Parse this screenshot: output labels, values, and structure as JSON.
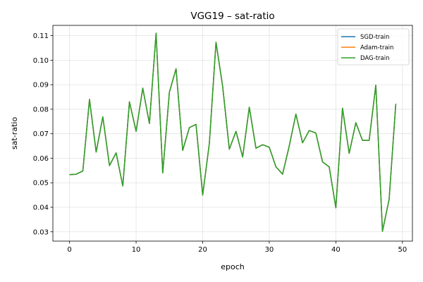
{
  "chart_data": {
    "type": "line",
    "title": "VGG19 – sat-ratio",
    "xlabel": "epoch",
    "ylabel": "sat-ratio",
    "xlim": [
      -2.5,
      51.5
    ],
    "ylim": [
      0.0262,
      0.1142
    ],
    "xticks": [
      0,
      10,
      20,
      30,
      40,
      50
    ],
    "yticks": [
      0.03,
      0.04,
      0.05,
      0.06,
      0.07,
      0.08,
      0.09,
      0.1,
      0.11
    ],
    "ytick_labels": [
      "0.03",
      "0.04",
      "0.05",
      "0.06",
      "0.07",
      "0.08",
      "0.09",
      "0.10",
      "0.11"
    ],
    "grid": true,
    "legend_position": "top-right",
    "x": [
      0,
      1,
      2,
      3,
      4,
      5,
      6,
      7,
      8,
      9,
      10,
      11,
      12,
      13,
      14,
      15,
      16,
      17,
      18,
      19,
      20,
      21,
      22,
      23,
      24,
      25,
      26,
      27,
      28,
      29,
      30,
      31,
      32,
      33,
      34,
      35,
      36,
      37,
      38,
      39,
      40,
      41,
      42,
      43,
      44,
      45,
      46,
      47,
      48,
      49
    ],
    "series": [
      {
        "name": "SGD-train",
        "color": "#1f77b4",
        "values": [
          0.0533,
          0.0535,
          0.0548,
          0.084,
          0.0625,
          0.0769,
          0.057,
          0.0622,
          0.0487,
          0.083,
          0.071,
          0.0886,
          0.0742,
          0.111,
          0.054,
          0.087,
          0.0965,
          0.0632,
          0.0725,
          0.0738,
          0.045,
          0.066,
          0.1073,
          0.0893,
          0.0637,
          0.071,
          0.0605,
          0.0808,
          0.0641,
          0.0655,
          0.0645,
          0.0565,
          0.0535,
          0.065,
          0.078,
          0.0663,
          0.0713,
          0.0703,
          0.0585,
          0.0565,
          0.0398,
          0.0804,
          0.062,
          0.0745,
          0.0673,
          0.0673,
          0.0898,
          0.0302,
          0.0432,
          0.0822
        ]
      },
      {
        "name": "Adam-train",
        "color": "#ff7f0e",
        "values": [
          0.0533,
          0.0535,
          0.0548,
          0.084,
          0.0625,
          0.0769,
          0.057,
          0.0622,
          0.0487,
          0.083,
          0.071,
          0.0886,
          0.0742,
          0.111,
          0.054,
          0.087,
          0.0965,
          0.0632,
          0.0725,
          0.0738,
          0.045,
          0.066,
          0.1073,
          0.0893,
          0.0637,
          0.071,
          0.0605,
          0.0808,
          0.0641,
          0.0655,
          0.0645,
          0.0565,
          0.0535,
          0.065,
          0.078,
          0.0663,
          0.0713,
          0.0703,
          0.0585,
          0.0565,
          0.0398,
          0.0804,
          0.062,
          0.0745,
          0.0673,
          0.0673,
          0.0898,
          0.0302,
          0.0432,
          0.0822
        ]
      },
      {
        "name": "DAG-train",
        "color": "#2ca02c",
        "values": [
          0.0533,
          0.0535,
          0.0548,
          0.084,
          0.0625,
          0.0769,
          0.057,
          0.0622,
          0.0487,
          0.083,
          0.071,
          0.0886,
          0.0742,
          0.111,
          0.054,
          0.087,
          0.0965,
          0.0632,
          0.0725,
          0.0738,
          0.045,
          0.066,
          0.1073,
          0.0893,
          0.0637,
          0.071,
          0.0605,
          0.0808,
          0.0641,
          0.0655,
          0.0645,
          0.0565,
          0.0535,
          0.065,
          0.078,
          0.0663,
          0.0713,
          0.0703,
          0.0585,
          0.0565,
          0.0398,
          0.0804,
          0.062,
          0.0745,
          0.0673,
          0.0673,
          0.0898,
          0.0302,
          0.0432,
          0.0822
        ]
      }
    ]
  }
}
